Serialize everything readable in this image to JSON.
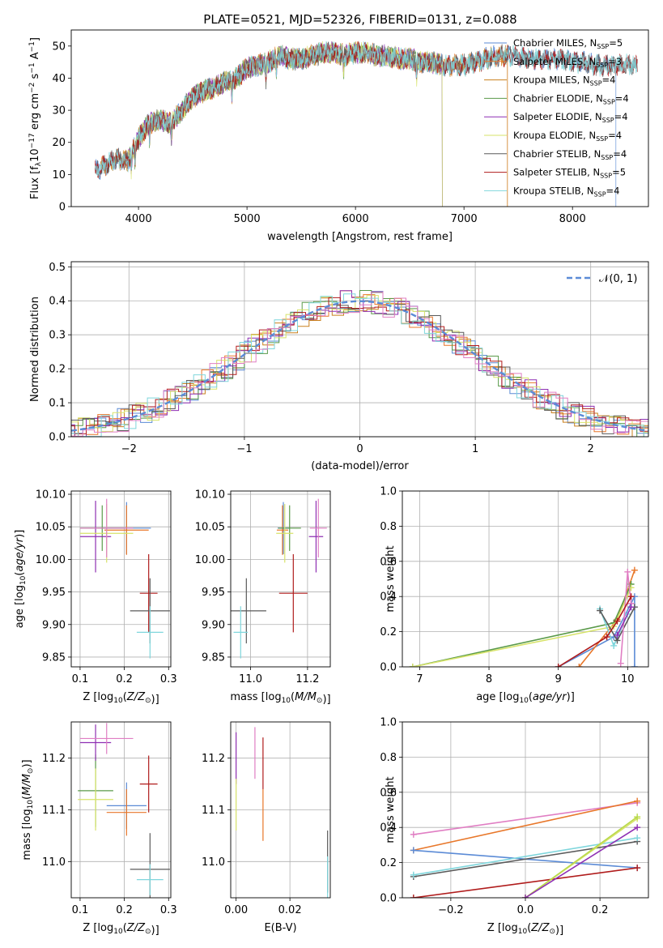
{
  "figure": {
    "title": "PLATE=0521, MJD=52326, FIBERID=0131, z=0.088"
  },
  "colors": {
    "chabrier_miles": "#5b8bd6",
    "salpeter_miles": "#e8772a",
    "kroupa_miles": "#c9801e",
    "chabrier_elodie": "#5a9a4a",
    "salpeter_elodie": "#8e2fb3",
    "kroupa_elodie": "#d7e36a",
    "chabrier_stelib": "#5a5a5a",
    "salpeter_stelib": "#b01c1c",
    "kroupa_stelib": "#7fd6dc",
    "pink": "#e07ec3",
    "lime": "#b8d94a",
    "gaussian": "#5b8bd6"
  },
  "chart_data": [
    {
      "type": "line",
      "id": "spectrum",
      "xlabel": "wavelength [Angstrom, rest frame]",
      "ylabel": "Flux [f_λ10^−17 erg cm^−2 s^−1 A^−1]",
      "xlim": [
        3380,
        8700
      ],
      "ylim": [
        0,
        55
      ],
      "xticks": [
        4000,
        5000,
        6000,
        7000,
        8000
      ],
      "yticks": [
        0,
        10,
        20,
        30,
        40,
        50
      ],
      "grid": false,
      "legend": "top-right",
      "continuum": {
        "x": [
          3600,
          3700,
          3800,
          3900,
          4000,
          4100,
          4200,
          4300,
          4400,
          4500,
          4600,
          4700,
          4800,
          4900,
          5000,
          5100,
          5200,
          5300,
          5400,
          5500,
          5600,
          5700,
          5800,
          5900,
          6000,
          6100,
          6200,
          6300,
          6400,
          6500,
          6600,
          6700,
          6800,
          6900,
          7000,
          7100,
          7200,
          7300,
          7400,
          7500,
          7600,
          7700,
          7800,
          7900,
          8000,
          8100,
          8200,
          8300,
          8400,
          8500
        ],
        "y": [
          11,
          13,
          15,
          14,
          21,
          26,
          27,
          26,
          30,
          34,
          36,
          37,
          39,
          40,
          43,
          44,
          45,
          47,
          46,
          46,
          47,
          48,
          48,
          47,
          48,
          48,
          47,
          47,
          46,
          46,
          45,
          45,
          44,
          44,
          44,
          45,
          46,
          47,
          47,
          47,
          46,
          46,
          46,
          46,
          45,
          45,
          44,
          44,
          44,
          44
        ]
      },
      "series": [
        {
          "name": "Chabrier MILES, N_SSP=5",
          "color": "#5b8bd6",
          "x": [
            3600,
            8400
          ]
        },
        {
          "name": "Salpeter MILES, N_SSP=3",
          "color": "#e8772a",
          "x": [
            3650,
            7400
          ]
        },
        {
          "name": "Kroupa MILES, N_SSP=4",
          "color": "#c9801e",
          "x": [
            3650,
            7400
          ]
        },
        {
          "name": "Chabrier ELODIE, N_SSP=4",
          "color": "#5a9a4a",
          "x": [
            3900,
            6800
          ]
        },
        {
          "name": "Salpeter ELODIE, N_SSP=4",
          "color": "#8e2fb3",
          "x": [
            3900,
            6800
          ]
        },
        {
          "name": "Kroupa ELODIE, N_SSP=4",
          "color": "#d7e36a",
          "x": [
            3900,
            6800
          ]
        },
        {
          "name": "Chabrier STELIB, N_SSP=4",
          "color": "#5a5a5a",
          "x": [
            3600,
            8600
          ]
        },
        {
          "name": "Salpeter STELIB, N_SSP=5",
          "color": "#b01c1c",
          "x": [
            3600,
            8600
          ]
        },
        {
          "name": "Kroupa STELIB, N_SSP=4",
          "color": "#7fd6dc",
          "x": [
            3600,
            8600
          ]
        }
      ]
    },
    {
      "type": "line",
      "id": "residual_hist",
      "xlabel": "(data-model)/error",
      "ylabel": "Normed distribution",
      "xlim": [
        -2.5,
        2.5
      ],
      "ylim": [
        0,
        0.515
      ],
      "xticks": [
        -2,
        -1,
        0,
        1,
        2
      ],
      "yticks": [
        0.0,
        0.1,
        0.2,
        0.3,
        0.4,
        0.5
      ],
      "grid": true,
      "legend": "top-right",
      "legend_entry": "𝒩(0, 1)",
      "bin_width": 0.1,
      "series_colors": [
        "#5b8bd6",
        "#e8772a",
        "#c9801e",
        "#5a9a4a",
        "#8e2fb3",
        "#d7e36a",
        "#5a5a5a",
        "#b01c1c",
        "#7fd6dc",
        "#e07ec3"
      ]
    },
    {
      "type": "scatter",
      "id": "age_vs_z",
      "xlabel": "Z [log10(Z/Z⊙)]",
      "ylabel": "age [log10(age/yr)]",
      "xlim": [
        0.08,
        0.305
      ],
      "ylim": [
        9.835,
        10.105
      ],
      "xticks": [
        0.1,
        0.2,
        0.3
      ],
      "yticks": [
        9.85,
        9.9,
        9.95,
        10.0,
        10.05,
        10.1
      ],
      "grid": true,
      "points": [
        {
          "x": 0.205,
          "y": 10.048,
          "xerr": 0.055,
          "yerr": 0.04,
          "color": "#5b8bd6"
        },
        {
          "x": 0.205,
          "y": 10.045,
          "xerr": 0.05,
          "yerr": 0.038,
          "color": "#e8772a"
        },
        {
          "x": 0.15,
          "y": 10.048,
          "xerr": 0.05,
          "yerr": 0.035,
          "color": "#5a9a4a"
        },
        {
          "x": 0.135,
          "y": 10.035,
          "xerr": 0.035,
          "yerr": 0.055,
          "color": "#8e2fb3"
        },
        {
          "x": 0.16,
          "y": 10.04,
          "xerr": 0.06,
          "yerr": 0.045,
          "color": "#d7e36a"
        },
        {
          "x": 0.16,
          "y": 10.048,
          "xerr": 0.06,
          "yerr": 0.045,
          "color": "#e07ec3"
        },
        {
          "x": 0.255,
          "y": 9.948,
          "xerr": 0.02,
          "yerr": 0.06,
          "color": "#b01c1c"
        },
        {
          "x": 0.258,
          "y": 9.921,
          "xerr": 0.045,
          "yerr": 0.05,
          "color": "#5a5a5a"
        },
        {
          "x": 0.258,
          "y": 9.888,
          "xerr": 0.03,
          "yerr": 0.04,
          "color": "#7fd6dc"
        }
      ]
    },
    {
      "type": "scatter",
      "id": "age_vs_mass",
      "xlabel": "mass [log10(M/M⊙)]",
      "ylabel": "",
      "xlim": [
        10.93,
        11.28
      ],
      "ylim": [
        9.835,
        10.105
      ],
      "xticks": [
        11.0,
        11.2
      ],
      "yticks": [
        9.85,
        9.9,
        9.95,
        10.0,
        10.05,
        10.1
      ],
      "grid": true,
      "points": [
        {
          "x": 11.115,
          "y": 10.048,
          "xerr": 0.02,
          "yerr": 0.04,
          "color": "#5b8bd6"
        },
        {
          "x": 11.112,
          "y": 10.045,
          "xerr": 0.02,
          "yerr": 0.038,
          "color": "#e8772a"
        },
        {
          "x": 11.137,
          "y": 10.048,
          "xerr": 0.04,
          "yerr": 0.035,
          "color": "#5a9a4a"
        },
        {
          "x": 11.23,
          "y": 10.035,
          "xerr": 0.025,
          "yerr": 0.055,
          "color": "#8e2fb3"
        },
        {
          "x": 11.12,
          "y": 10.04,
          "xerr": 0.03,
          "yerr": 0.045,
          "color": "#d7e36a"
        },
        {
          "x": 11.238,
          "y": 10.048,
          "xerr": 0.03,
          "yerr": 0.045,
          "color": "#e07ec3"
        },
        {
          "x": 11.15,
          "y": 9.948,
          "xerr": 0.05,
          "yerr": 0.06,
          "color": "#b01c1c"
        },
        {
          "x": 10.985,
          "y": 9.921,
          "xerr": 0.07,
          "yerr": 0.05,
          "color": "#5a5a5a"
        },
        {
          "x": 10.965,
          "y": 9.888,
          "xerr": 0.025,
          "yerr": 0.04,
          "color": "#7fd6dc"
        }
      ]
    },
    {
      "type": "line",
      "id": "mass_weight_vs_age",
      "xlabel": "age [log10(age/yr)]",
      "ylabel": "mass weight",
      "xlim": [
        6.75,
        10.3
      ],
      "ylim": [
        0,
        1
      ],
      "xticks": [
        7,
        8,
        9,
        10
      ],
      "yticks": [
        0.0,
        0.2,
        0.4,
        0.6,
        0.8,
        1.0
      ],
      "grid": true,
      "series": [
        {
          "color": "#5b8bd6",
          "x": [
            9.0,
            9.8,
            10.1,
            10.1
          ],
          "y": [
            0.0,
            0.17,
            0.4,
            0.0
          ]
        },
        {
          "color": "#e8772a",
          "x": [
            9.3,
            9.85,
            10.1
          ],
          "y": [
            0.0,
            0.27,
            0.55
          ]
        },
        {
          "color": "#5a9a4a",
          "x": [
            6.9,
            9.8,
            10.05
          ],
          "y": [
            0.0,
            0.25,
            0.47
          ]
        },
        {
          "color": "#d7e36a",
          "x": [
            6.9,
            9.8,
            10.05
          ],
          "y": [
            0.0,
            0.23,
            0.45
          ]
        },
        {
          "color": "#7fd6dc",
          "x": [
            9.6,
            9.8,
            10.0
          ],
          "y": [
            0.33,
            0.12,
            0.3
          ]
        },
        {
          "color": "#5a5a5a",
          "x": [
            9.6,
            9.85,
            10.1
          ],
          "y": [
            0.32,
            0.15,
            0.34
          ]
        },
        {
          "color": "#e07ec3",
          "x": [
            9.9,
            10.0,
            10.05
          ],
          "y": [
            0.02,
            0.54,
            0.36
          ]
        },
        {
          "color": "#8e2fb3",
          "x": [
            9.85,
            10.05
          ],
          "y": [
            0.18,
            0.34
          ]
        },
        {
          "color": "#b01c1c",
          "x": [
            9.0,
            9.7,
            9.85,
            10.05
          ],
          "y": [
            0.0,
            0.17,
            0.26,
            0.4
          ]
        }
      ]
    },
    {
      "type": "scatter",
      "id": "mass_vs_z",
      "xlabel": "Z [log10(Z/Z⊙)]",
      "ylabel": "mass [log10(M/M⊙)]",
      "xlim": [
        0.08,
        0.305
      ],
      "ylim": [
        10.93,
        11.27
      ],
      "xticks": [
        0.1,
        0.2,
        0.3
      ],
      "yticks": [
        11.0,
        11.1,
        11.2
      ],
      "grid": true,
      "points": [
        {
          "x": 0.205,
          "y": 11.108,
          "xerr": 0.045,
          "yerr": 0.045,
          "color": "#5b8bd6"
        },
        {
          "x": 0.205,
          "y": 11.095,
          "xerr": 0.045,
          "yerr": 0.045,
          "color": "#e8772a"
        },
        {
          "x": 0.135,
          "y": 11.137,
          "xerr": 0.04,
          "yerr": 0.07,
          "color": "#5a9a4a"
        },
        {
          "x": 0.135,
          "y": 11.23,
          "xerr": 0.035,
          "yerr": 0.035,
          "color": "#8e2fb3"
        },
        {
          "x": 0.135,
          "y": 11.12,
          "xerr": 0.04,
          "yerr": 0.06,
          "color": "#d7e36a"
        },
        {
          "x": 0.16,
          "y": 11.238,
          "xerr": 0.06,
          "yerr": 0.03,
          "color": "#e07ec3"
        },
        {
          "x": 0.255,
          "y": 11.15,
          "xerr": 0.02,
          "yerr": 0.055,
          "color": "#b01c1c"
        },
        {
          "x": 0.258,
          "y": 10.985,
          "xerr": 0.045,
          "yerr": 0.07,
          "color": "#5a5a5a"
        },
        {
          "x": 0.258,
          "y": 10.965,
          "xerr": 0.03,
          "yerr": 0.03,
          "color": "#7fd6dc"
        }
      ]
    },
    {
      "type": "scatter",
      "id": "mass_vs_ebv",
      "xlabel": "E(B-V)",
      "ylabel": "",
      "xlim": [
        -0.002,
        0.035
      ],
      "ylim": [
        10.93,
        11.27
      ],
      "xticks": [
        0.0,
        0.02
      ],
      "yticks": [
        11.0,
        11.1,
        11.2
      ],
      "grid": true,
      "points": [
        {
          "x": 0.0,
          "y": 11.2,
          "xerr": 0,
          "yerr": 0.05,
          "color": "#8e2fb3"
        },
        {
          "x": 0.0,
          "y": 11.11,
          "xerr": 0,
          "yerr": 0.05,
          "color": "#d7e36a"
        },
        {
          "x": 0.007,
          "y": 11.21,
          "xerr": 0,
          "yerr": 0.05,
          "color": "#e07ec3"
        },
        {
          "x": 0.01,
          "y": 11.19,
          "xerr": 0,
          "yerr": 0.05,
          "color": "#b01c1c"
        },
        {
          "x": 0.01,
          "y": 11.09,
          "xerr": 0,
          "yerr": 0.05,
          "color": "#e8772a"
        },
        {
          "x": 0.034,
          "y": 11.0,
          "xerr": 0,
          "yerr": 0.06,
          "color": "#5a5a5a"
        },
        {
          "x": 0.034,
          "y": 10.97,
          "xerr": 0,
          "yerr": 0.04,
          "color": "#7fd6dc"
        }
      ]
    },
    {
      "type": "line",
      "id": "mass_weight_vs_z",
      "xlabel": "Z [log10(Z/Z⊙)]",
      "ylabel": "mass weight",
      "xlim": [
        -0.33,
        0.33
      ],
      "ylim": [
        0,
        1
      ],
      "xticks": [
        -0.2,
        0.0,
        0.2
      ],
      "yticks": [
        0.0,
        0.2,
        0.4,
        0.6,
        0.8,
        1.0
      ],
      "grid": true,
      "series": [
        {
          "color": "#e07ec3",
          "x": [
            -0.3,
            0.3
          ],
          "y": [
            0.36,
            0.54
          ]
        },
        {
          "color": "#e8772a",
          "x": [
            -0.3,
            0.3
          ],
          "y": [
            0.27,
            0.55
          ]
        },
        {
          "color": "#5b8bd6",
          "x": [
            -0.3,
            0.3
          ],
          "y": [
            0.27,
            0.17
          ]
        },
        {
          "color": "#5a5a5a",
          "x": [
            -0.3,
            0.3
          ],
          "y": [
            0.12,
            0.32
          ]
        },
        {
          "color": "#7fd6dc",
          "x": [
            -0.3,
            0.3
          ],
          "y": [
            0.13,
            0.34
          ]
        },
        {
          "color": "#b01c1c",
          "x": [
            -0.3,
            0.3
          ],
          "y": [
            0.0,
            0.17
          ]
        },
        {
          "color": "#d7e36a",
          "x": [
            0.0,
            0.3
          ],
          "y": [
            0.0,
            0.45
          ]
        },
        {
          "color": "#b8d94a",
          "x": [
            0.0,
            0.3
          ],
          "y": [
            0.0,
            0.46
          ]
        },
        {
          "color": "#8e2fb3",
          "x": [
            0.0,
            0.3
          ],
          "y": [
            0.0,
            0.4
          ]
        }
      ]
    }
  ]
}
